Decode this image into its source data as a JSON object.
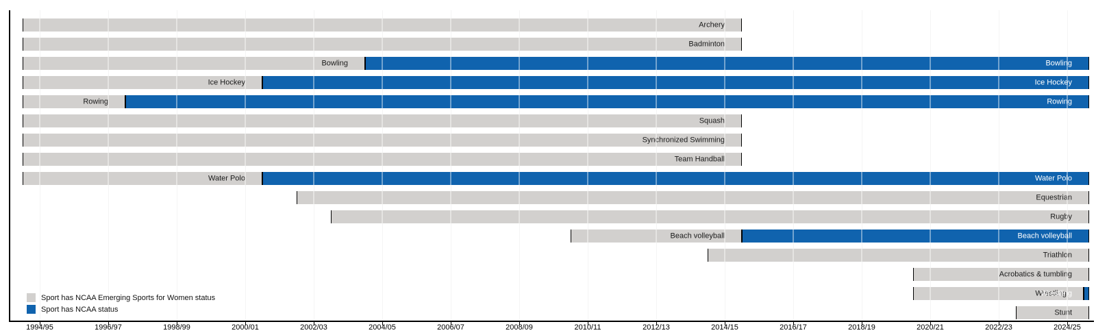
{
  "chart_data": {
    "type": "bar",
    "variant": "horizontal-timeline-gantt",
    "title": "",
    "xlabel": "",
    "ylabel": "",
    "axis_range_years": [
      1994.5,
      2025.64
    ],
    "grid": true,
    "legend_position": "bottom-left",
    "tick_labels": [
      "1994/95",
      "1996/97",
      "1998/99",
      "2000/01",
      "2002/03",
      "2004/05",
      "2006/07",
      "2008/09",
      "2010/11",
      "2012/13",
      "2014/15",
      "2016/17",
      "2018/19",
      "2020/21",
      "2022/23",
      "2024/25"
    ],
    "status_colors": {
      "emerging": "#d2d0ce",
      "ncaa": "#1063ae"
    },
    "status_text_colors": {
      "emerging": "#1a1a1a",
      "ncaa": "#ffffff"
    },
    "rows": [
      {
        "label": "Archery",
        "segments": [
          {
            "status": "emerging",
            "start": 1994.5,
            "end": 2015.5
          }
        ]
      },
      {
        "label": "Badminton",
        "segments": [
          {
            "status": "emerging",
            "start": 1994.5,
            "end": 2015.5
          }
        ]
      },
      {
        "label": "Bowling",
        "segments": [
          {
            "status": "emerging",
            "start": 1994.5,
            "end": 2004.5
          },
          {
            "status": "ncaa",
            "start": 2004.5,
            "end": 2025.64
          }
        ]
      },
      {
        "label": "Ice Hockey",
        "segments": [
          {
            "status": "emerging",
            "start": 1994.5,
            "end": 2001.5
          },
          {
            "status": "ncaa",
            "start": 2001.5,
            "end": 2025.64
          }
        ]
      },
      {
        "label": "Rowing",
        "segments": [
          {
            "status": "emerging",
            "start": 1994.5,
            "end": 1997.5
          },
          {
            "status": "ncaa",
            "start": 1997.5,
            "end": 2025.64
          }
        ]
      },
      {
        "label": "Squash",
        "segments": [
          {
            "status": "emerging",
            "start": 1994.5,
            "end": 2015.5
          }
        ]
      },
      {
        "label": "Synchronized Swimming",
        "segments": [
          {
            "status": "emerging",
            "start": 1994.5,
            "end": 2015.5
          }
        ]
      },
      {
        "label": "Team Handball",
        "segments": [
          {
            "status": "emerging",
            "start": 1994.5,
            "end": 2015.5
          }
        ]
      },
      {
        "label": "Water Polo",
        "segments": [
          {
            "status": "emerging",
            "start": 1994.5,
            "end": 2001.5
          },
          {
            "status": "ncaa",
            "start": 2001.5,
            "end": 2025.64
          }
        ]
      },
      {
        "label": "Equestrian",
        "segments": [
          {
            "status": "emerging",
            "start": 2002.5,
            "end": 2025.64
          }
        ]
      },
      {
        "label": "Rugby",
        "segments": [
          {
            "status": "emerging",
            "start": 2003.5,
            "end": 2025.64
          }
        ]
      },
      {
        "label": "Beach volleyball",
        "segments": [
          {
            "status": "emerging",
            "start": 2010.5,
            "end": 2015.5
          },
          {
            "status": "ncaa",
            "start": 2015.5,
            "end": 2025.64
          }
        ]
      },
      {
        "label": "Triathlon",
        "segments": [
          {
            "status": "emerging",
            "start": 2014.5,
            "end": 2025.64
          }
        ]
      },
      {
        "label": "Acrobatics & tumbling",
        "segments": [
          {
            "status": "emerging",
            "start": 2020.5,
            "end": 2025.64
          }
        ]
      },
      {
        "label": "Wrestling",
        "segments": [
          {
            "status": "emerging",
            "start": 2020.5,
            "end": 2025.48
          },
          {
            "status": "ncaa",
            "start": 2025.48,
            "end": 2025.64
          }
        ]
      },
      {
        "label": "Stunt",
        "segments": [
          {
            "status": "emerging",
            "start": 2023.5,
            "end": 2025.64
          }
        ]
      }
    ],
    "legend": [
      {
        "status": "emerging",
        "label": "Sport has NCAA Emerging Sports for Women status"
      },
      {
        "status": "ncaa",
        "label": "Sport has NCAA status"
      }
    ]
  }
}
